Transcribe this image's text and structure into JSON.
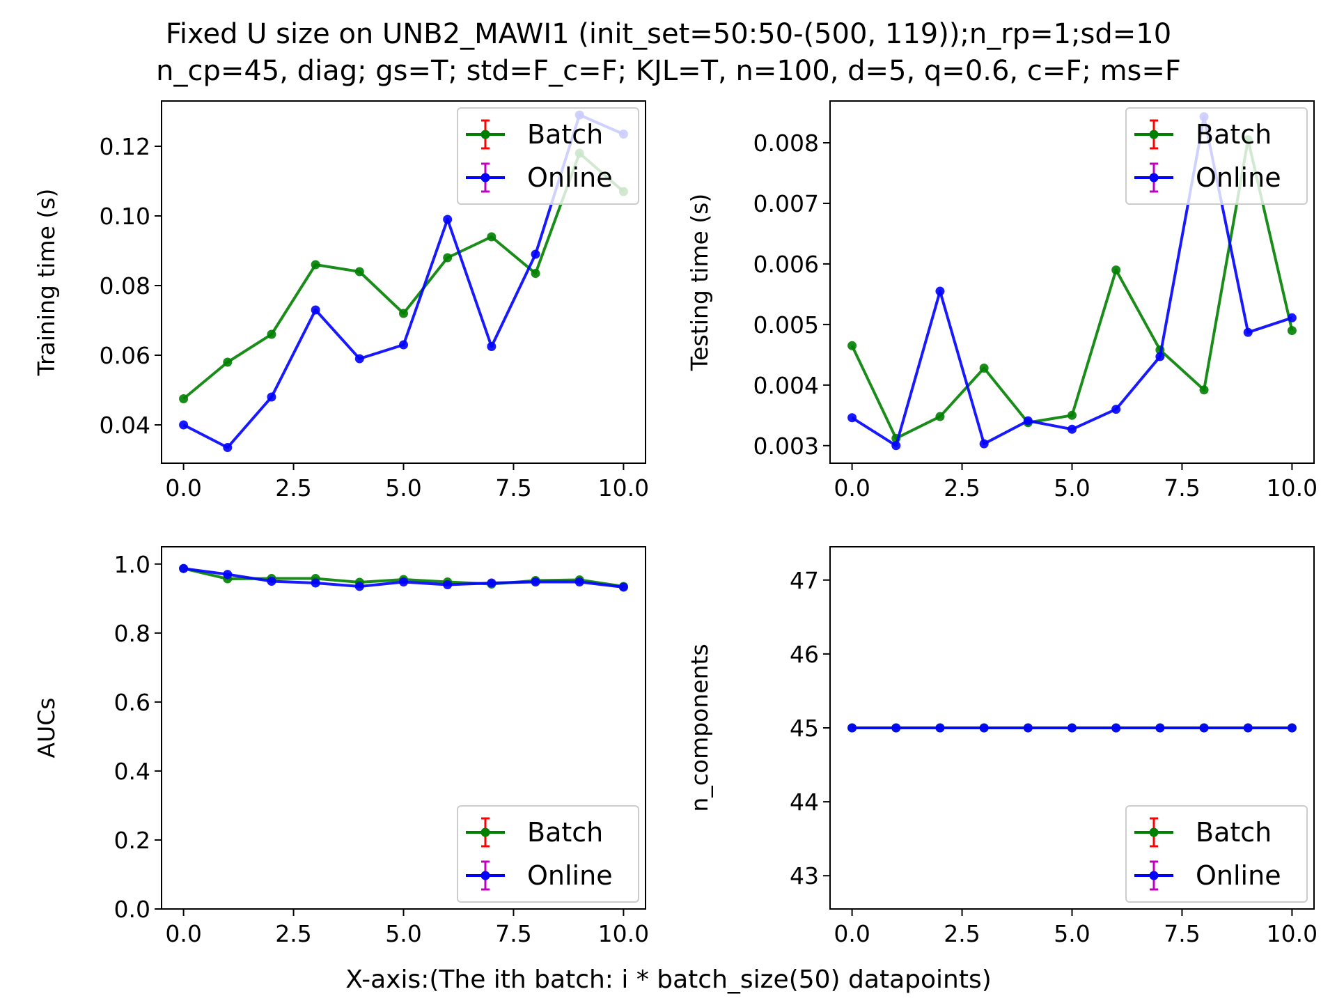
{
  "figure": {
    "title_line1": "Fixed U size on UNB2_MAWI1 (init_set=50:50-(500, 119));n_rp=1;sd=10",
    "title_line2": "n_cp=45, diag; gs=T; std=F_c=F; KJL=T, n=100, d=5, q=0.6, c=F; ms=F",
    "xlabel": "X-axis:(The ith batch: i * batch_size(50) datapoints)"
  },
  "colors": {
    "batch_line": "#008000",
    "online_line": "#0000ff",
    "batch_errorbar": "#ff0000",
    "online_errorbar": "#c000c0",
    "axis": "#000000",
    "legend_border": "#cccccc"
  },
  "chart_data": [
    {
      "type": "line",
      "ylabel": "Training time (s)",
      "x": [
        0,
        1,
        2,
        3,
        4,
        5,
        6,
        7,
        8,
        9,
        10
      ],
      "xlim": [
        -0.5,
        10.5
      ],
      "ylim": [
        0.029,
        0.133
      ],
      "xticks": [
        0,
        2.5,
        5,
        7.5,
        10
      ],
      "xtick_labels": [
        "0.0",
        "2.5",
        "5.0",
        "7.5",
        "10.0"
      ],
      "yticks": [
        0.04,
        0.06,
        0.08,
        0.1,
        0.12
      ],
      "ytick_labels": [
        "0.04",
        "0.06",
        "0.08",
        "0.10",
        "0.12"
      ],
      "legend_position": "upper right",
      "series": [
        {
          "name": "Batch",
          "values": [
            0.0475,
            0.058,
            0.066,
            0.086,
            0.084,
            0.072,
            0.088,
            0.094,
            0.0835,
            0.118,
            0.107
          ]
        },
        {
          "name": "Online",
          "values": [
            0.04,
            0.0335,
            0.048,
            0.073,
            0.059,
            0.063,
            0.099,
            0.0625,
            0.089,
            0.129,
            0.1235
          ]
        }
      ]
    },
    {
      "type": "line",
      "ylabel": "Testing time (s)",
      "x": [
        0,
        1,
        2,
        3,
        4,
        5,
        6,
        7,
        8,
        9,
        10
      ],
      "xlim": [
        -0.5,
        10.5
      ],
      "ylim": [
        0.00271,
        0.00869
      ],
      "xticks": [
        0,
        2.5,
        5,
        7.5,
        10
      ],
      "xtick_labels": [
        "0.0",
        "2.5",
        "5.0",
        "7.5",
        "10.0"
      ],
      "yticks": [
        0.003,
        0.004,
        0.005,
        0.006,
        0.007,
        0.008
      ],
      "ytick_labels": [
        "0.003",
        "0.004",
        "0.005",
        "0.006",
        "0.007",
        "0.008"
      ],
      "legend_position": "upper right",
      "series": [
        {
          "name": "Batch",
          "values": [
            0.00465,
            0.00312,
            0.00348,
            0.00428,
            0.00338,
            0.0035,
            0.0059,
            0.00458,
            0.00392,
            0.00805,
            0.0049
          ]
        },
        {
          "name": "Online",
          "values": [
            0.00346,
            0.003,
            0.00555,
            0.00303,
            0.00341,
            0.00327,
            0.0036,
            0.00447,
            0.00843,
            0.00487,
            0.00511
          ]
        }
      ]
    },
    {
      "type": "line",
      "ylabel": "AUCs",
      "x": [
        0,
        1,
        2,
        3,
        4,
        5,
        6,
        7,
        8,
        9,
        10
      ],
      "xlim": [
        -0.5,
        10.5
      ],
      "ylim": [
        0.0,
        1.05
      ],
      "xticks": [
        0,
        2.5,
        5,
        7.5,
        10
      ],
      "xtick_labels": [
        "0.0",
        "2.5",
        "5.0",
        "7.5",
        "10.0"
      ],
      "yticks": [
        0.0,
        0.2,
        0.4,
        0.6,
        0.8,
        1.0
      ],
      "ytick_labels": [
        "0.0",
        "0.2",
        "0.4",
        "0.6",
        "0.8",
        "1.0"
      ],
      "legend_position": "lower right",
      "series": [
        {
          "name": "Batch",
          "values": [
            0.987,
            0.957,
            0.958,
            0.958,
            0.947,
            0.955,
            0.948,
            0.942,
            0.952,
            0.954,
            0.935
          ]
        },
        {
          "name": "Online",
          "values": [
            0.987,
            0.97,
            0.95,
            0.945,
            0.935,
            0.948,
            0.94,
            0.945,
            0.948,
            0.948,
            0.933
          ]
        }
      ]
    },
    {
      "type": "line",
      "ylabel": "n_components",
      "x": [
        0,
        1,
        2,
        3,
        4,
        5,
        6,
        7,
        8,
        9,
        10
      ],
      "xlim": [
        -0.5,
        10.5
      ],
      "ylim": [
        42.55,
        47.45
      ],
      "xticks": [
        0,
        2.5,
        5,
        7.5,
        10
      ],
      "xtick_labels": [
        "0.0",
        "2.5",
        "5.0",
        "7.5",
        "10.0"
      ],
      "yticks": [
        43,
        44,
        45,
        46,
        47
      ],
      "ytick_labels": [
        "43",
        "44",
        "45",
        "46",
        "47"
      ],
      "legend_position": "lower right",
      "series": [
        {
          "name": "Batch",
          "values": [
            45,
            45,
            45,
            45,
            45,
            45,
            45,
            45,
            45,
            45,
            45
          ]
        },
        {
          "name": "Online",
          "values": [
            45,
            45,
            45,
            45,
            45,
            45,
            45,
            45,
            45,
            45,
            45
          ]
        }
      ]
    }
  ]
}
